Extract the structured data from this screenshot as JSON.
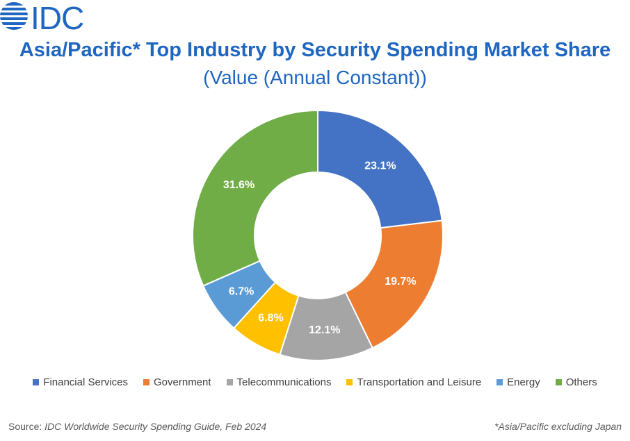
{
  "logo": {
    "text": "IDC",
    "color": "#1f66c1"
  },
  "header": {
    "title": "Asia/Pacific* Top Industry by Security Spending Market Share",
    "subtitle": "(Value (Annual Constant))"
  },
  "chart_data": {
    "type": "pie",
    "subtype": "donut",
    "title": "Asia/Pacific* Top Industry by Security Spending Market Share",
    "subtitle": "(Value (Annual Constant))",
    "categories": [
      "Financial Services",
      "Government",
      "Telecommunications",
      "Transportation and Leisure",
      "Energy",
      "Others"
    ],
    "values": [
      23.1,
      19.7,
      12.1,
      6.8,
      6.7,
      31.6
    ],
    "labels": [
      "23.1%",
      "19.7%",
      "12.1%",
      "6.8%",
      "6.7%",
      "31.6%"
    ],
    "colors": [
      "#4472c4",
      "#ed7d31",
      "#a5a5a5",
      "#ffc000",
      "#5b9bd5",
      "#70ad47"
    ],
    "legend_position": "bottom"
  },
  "footer": {
    "source_prefix": "Source: ",
    "source_text": "IDC Worldwide Security Spending Guide, Feb 2024",
    "footnote": "*Asia/Pacific excluding Japan"
  }
}
